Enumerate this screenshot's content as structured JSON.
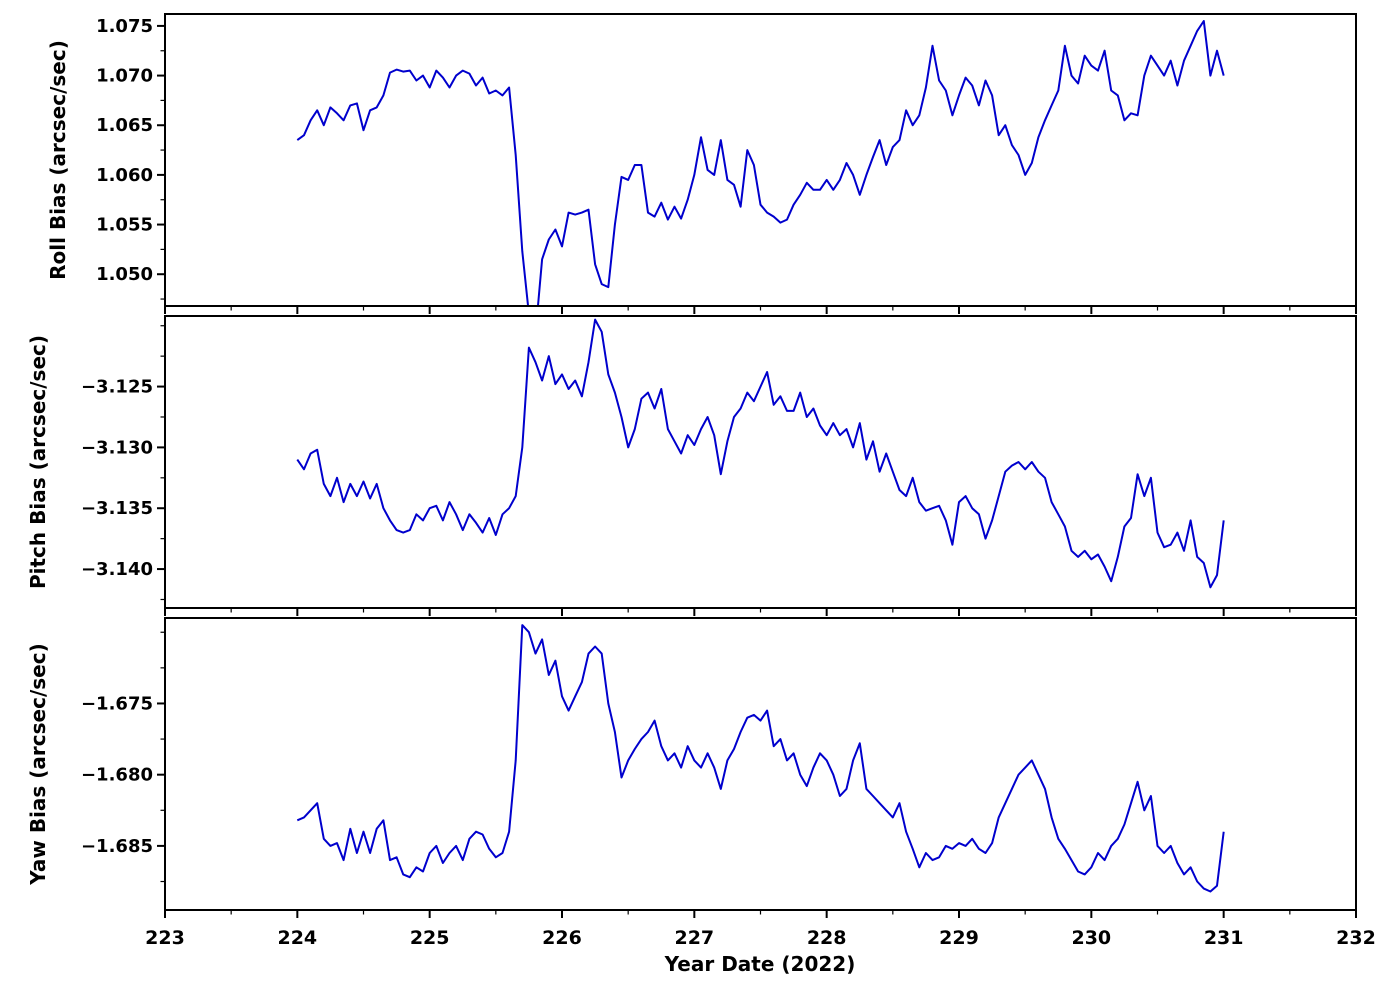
{
  "chart_data": {
    "type": "line",
    "title": "",
    "line_color": "#0000cd",
    "background": "#ffffff",
    "grid": false,
    "legend": "none",
    "x_axis": {
      "label": "Year Date (2022)",
      "lim": [
        223,
        232
      ],
      "ticks": [
        223,
        224,
        225,
        226,
        227,
        228,
        229,
        230,
        231,
        232
      ],
      "tick_labels": [
        "223",
        "224",
        "225",
        "226",
        "227",
        "228",
        "229",
        "230",
        "231",
        "232"
      ],
      "minor_step": 0.5,
      "x_start": 224.0,
      "x_step": 0.05
    },
    "subplots": [
      {
        "name": "roll-bias",
        "ylabel": "Roll Bias (arcsec/sec)",
        "ylim": [
          1.0468,
          1.0762
        ],
        "yticks": [
          1.05,
          1.055,
          1.06,
          1.065,
          1.07,
          1.075
        ],
        "ytick_labels": [
          "1.050",
          "1.055",
          "1.060",
          "1.065",
          "1.070",
          "1.075"
        ],
        "minor_step": 0.0025,
        "values": [
          1.0635,
          1.064,
          1.0655,
          1.0665,
          1.065,
          1.0668,
          1.0662,
          1.0655,
          1.067,
          1.0672,
          1.0645,
          1.0665,
          1.0668,
          1.068,
          1.0703,
          1.0706,
          1.0704,
          1.0705,
          1.0695,
          1.07,
          1.0688,
          1.0705,
          1.0698,
          1.0688,
          1.07,
          1.0705,
          1.0702,
          1.069,
          1.0698,
          1.0682,
          1.0685,
          1.068,
          1.0688,
          1.062,
          1.0523,
          1.046,
          1.044,
          1.0515,
          1.0535,
          1.0545,
          1.0528,
          1.0562,
          1.056,
          1.0562,
          1.0565,
          1.051,
          1.049,
          1.0487,
          1.055,
          1.0598,
          1.0595,
          1.061,
          1.061,
          1.0562,
          1.0558,
          1.0572,
          1.0555,
          1.0568,
          1.0556,
          1.0575,
          1.06,
          1.0638,
          1.0605,
          1.06,
          1.0635,
          1.0595,
          1.059,
          1.0568,
          1.0625,
          1.061,
          1.057,
          1.0562,
          1.0558,
          1.0552,
          1.0555,
          1.057,
          1.058,
          1.0592,
          1.0585,
          1.0585,
          1.0595,
          1.0585,
          1.0595,
          1.0612,
          1.06,
          1.058,
          1.06,
          1.0618,
          1.0635,
          1.061,
          1.0628,
          1.0635,
          1.0665,
          1.065,
          1.066,
          1.0688,
          1.073,
          1.0695,
          1.0685,
          1.066,
          1.068,
          1.0698,
          1.069,
          1.067,
          1.0695,
          1.068,
          1.064,
          1.065,
          1.063,
          1.062,
          1.06,
          1.0612,
          1.0638,
          1.0655,
          1.067,
          1.0685,
          1.073,
          1.07,
          1.0692,
          1.072,
          1.071,
          1.0705,
          1.0725,
          1.0685,
          1.068,
          1.0655,
          1.0662,
          1.066,
          1.07,
          1.072,
          1.071,
          1.07,
          1.0715,
          1.069,
          1.0715,
          1.073,
          1.0745,
          1.0755,
          1.07,
          1.0725,
          1.07
        ]
      },
      {
        "name": "pitch-bias",
        "ylabel": "Pitch Bias (arcsec/sec)",
        "ylim": [
          -3.1432,
          -3.1192
        ],
        "yticks": [
          -3.14,
          -3.135,
          -3.13,
          -3.125
        ],
        "ytick_labels": [
          "−3.140",
          "−3.135",
          "−3.130",
          "−3.125"
        ],
        "minor_step": 0.0025,
        "values": [
          -3.131,
          -3.1318,
          -3.1305,
          -3.1302,
          -3.133,
          -3.134,
          -3.1325,
          -3.1345,
          -3.133,
          -3.134,
          -3.1328,
          -3.1342,
          -3.133,
          -3.135,
          -3.136,
          -3.1368,
          -3.137,
          -3.1368,
          -3.1355,
          -3.136,
          -3.135,
          -3.1348,
          -3.136,
          -3.1345,
          -3.1355,
          -3.1368,
          -3.1355,
          -3.1362,
          -3.137,
          -3.1358,
          -3.1372,
          -3.1355,
          -3.135,
          -3.134,
          -3.13,
          -3.1218,
          -3.123,
          -3.1245,
          -3.1225,
          -3.1248,
          -3.124,
          -3.1252,
          -3.1245,
          -3.1258,
          -3.123,
          -3.1195,
          -3.1205,
          -3.124,
          -3.1255,
          -3.1275,
          -3.13,
          -3.1285,
          -3.126,
          -3.1255,
          -3.1268,
          -3.1252,
          -3.1285,
          -3.1295,
          -3.1305,
          -3.129,
          -3.1298,
          -3.1285,
          -3.1275,
          -3.129,
          -3.1322,
          -3.1295,
          -3.1275,
          -3.1268,
          -3.1255,
          -3.1262,
          -3.125,
          -3.1238,
          -3.1265,
          -3.1258,
          -3.127,
          -3.127,
          -3.1255,
          -3.1275,
          -3.1268,
          -3.1282,
          -3.129,
          -3.128,
          -3.129,
          -3.1285,
          -3.13,
          -3.128,
          -3.131,
          -3.1295,
          -3.132,
          -3.1305,
          -3.132,
          -3.1335,
          -3.134,
          -3.1325,
          -3.1345,
          -3.1352,
          -3.135,
          -3.1348,
          -3.136,
          -3.138,
          -3.1345,
          -3.134,
          -3.135,
          -3.1355,
          -3.1375,
          -3.136,
          -3.134,
          -3.132,
          -3.1315,
          -3.1312,
          -3.1318,
          -3.1312,
          -3.132,
          -3.1325,
          -3.1345,
          -3.1355,
          -3.1365,
          -3.1385,
          -3.139,
          -3.1385,
          -3.1392,
          -3.1388,
          -3.1398,
          -3.141,
          -3.139,
          -3.1365,
          -3.1358,
          -3.1322,
          -3.134,
          -3.1325,
          -3.137,
          -3.1382,
          -3.138,
          -3.137,
          -3.1385,
          -3.136,
          -3.139,
          -3.1395,
          -3.1415,
          -3.1405,
          -3.136
        ]
      },
      {
        "name": "yaw-bias",
        "ylabel": "Yaw Bias (arcsec/sec)",
        "ylim": [
          -1.6895,
          -1.669
        ],
        "yticks": [
          -1.685,
          -1.68,
          -1.675
        ],
        "ytick_labels": [
          "−1.685",
          "−1.680",
          "−1.675"
        ],
        "minor_step": 0.0025,
        "values": [
          -1.6832,
          -1.683,
          -1.6825,
          -1.682,
          -1.6845,
          -1.685,
          -1.6848,
          -1.686,
          -1.6838,
          -1.6855,
          -1.684,
          -1.6855,
          -1.6838,
          -1.6832,
          -1.686,
          -1.6858,
          -1.687,
          -1.6872,
          -1.6865,
          -1.6868,
          -1.6855,
          -1.685,
          -1.6862,
          -1.6855,
          -1.685,
          -1.686,
          -1.6845,
          -1.684,
          -1.6842,
          -1.6852,
          -1.6858,
          -1.6855,
          -1.684,
          -1.679,
          -1.6695,
          -1.67,
          -1.6715,
          -1.6705,
          -1.673,
          -1.672,
          -1.6745,
          -1.6755,
          -1.6745,
          -1.6735,
          -1.6715,
          -1.671,
          -1.6715,
          -1.675,
          -1.677,
          -1.6802,
          -1.679,
          -1.6782,
          -1.6775,
          -1.677,
          -1.6762,
          -1.678,
          -1.679,
          -1.6785,
          -1.6795,
          -1.678,
          -1.679,
          -1.6795,
          -1.6785,
          -1.6795,
          -1.681,
          -1.679,
          -1.6782,
          -1.677,
          -1.676,
          -1.6758,
          -1.6762,
          -1.6755,
          -1.678,
          -1.6775,
          -1.679,
          -1.6785,
          -1.68,
          -1.6808,
          -1.6795,
          -1.6785,
          -1.679,
          -1.68,
          -1.6815,
          -1.681,
          -1.679,
          -1.6778,
          -1.681,
          -1.6815,
          -1.682,
          -1.6825,
          -1.683,
          -1.682,
          -1.684,
          -1.6852,
          -1.6865,
          -1.6855,
          -1.686,
          -1.6858,
          -1.685,
          -1.6852,
          -1.6848,
          -1.685,
          -1.6845,
          -1.6852,
          -1.6855,
          -1.6848,
          -1.683,
          -1.682,
          -1.681,
          -1.68,
          -1.6795,
          -1.679,
          -1.68,
          -1.681,
          -1.683,
          -1.6845,
          -1.6852,
          -1.686,
          -1.6868,
          -1.687,
          -1.6865,
          -1.6855,
          -1.686,
          -1.685,
          -1.6845,
          -1.6835,
          -1.682,
          -1.6805,
          -1.6825,
          -1.6815,
          -1.685,
          -1.6855,
          -1.685,
          -1.6862,
          -1.687,
          -1.6865,
          -1.6875,
          -1.688,
          -1.6882,
          -1.6878,
          -1.684
        ]
      }
    ]
  }
}
